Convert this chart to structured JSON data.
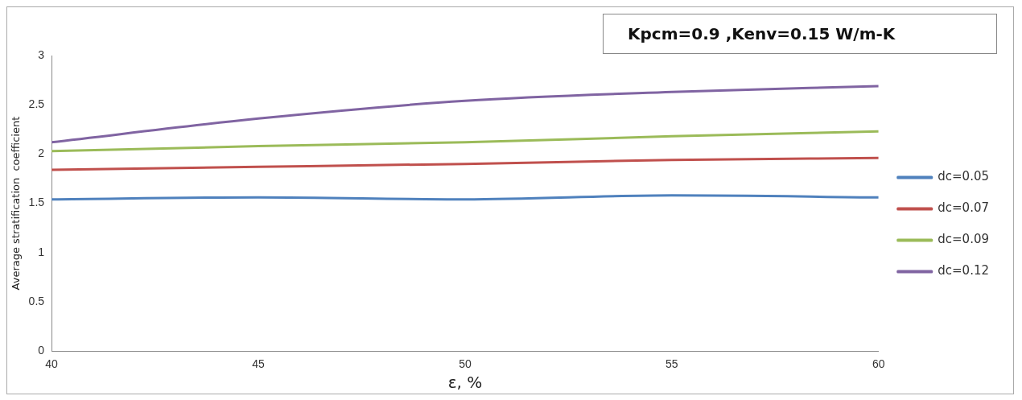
{
  "chart_data": {
    "type": "line",
    "title": "Kpcm=0.9 ,Kenv=0.15 W/m-K",
    "xlabel": "ε, %",
    "ylabel": "Average stratification  coefficient",
    "x": [
      40,
      45,
      50,
      55,
      60
    ],
    "series": [
      {
        "name": "dc=0.05",
        "color": "#4f81bd",
        "values": [
          1.54,
          1.56,
          1.54,
          1.58,
          1.56
        ]
      },
      {
        "name": "dc=0.07",
        "color": "#c0504d",
        "values": [
          1.84,
          1.87,
          1.9,
          1.94,
          1.96
        ]
      },
      {
        "name": "dc=0.09",
        "color": "#9bbb59",
        "values": [
          2.03,
          2.08,
          2.12,
          2.18,
          2.23
        ]
      },
      {
        "name": "dc=0.12",
        "color": "#8064a2",
        "values": [
          2.12,
          2.36,
          2.54,
          2.63,
          2.69
        ]
      }
    ],
    "xlim": [
      40,
      60
    ],
    "xticks": [
      40,
      45,
      50,
      55,
      60
    ],
    "ylim": [
      0,
      3
    ],
    "yticks": [
      0,
      0.5,
      1,
      1.5,
      2,
      2.5,
      3
    ],
    "grid": false,
    "legend": "right",
    "marker": "none",
    "line_style": "solid"
  }
}
